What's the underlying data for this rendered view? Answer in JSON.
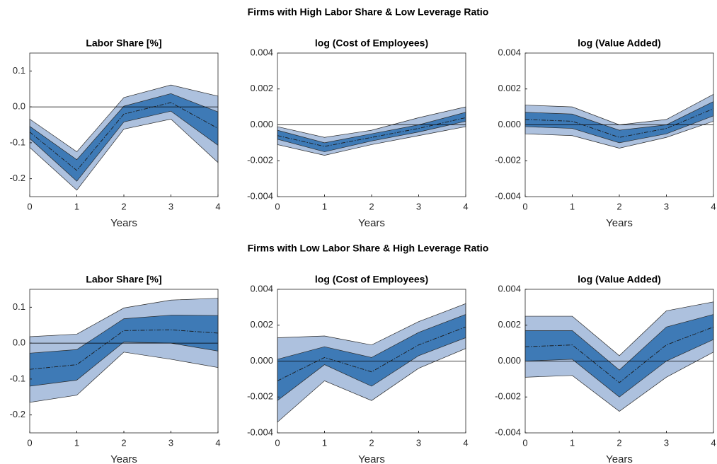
{
  "row_titles": [
    "Firms with High Labor Share & Low Leverage Ratio",
    "Firms with Low Labor Share & High Leverage Ratio"
  ],
  "chart_data": [
    {
      "type": "band",
      "title": "Labor Share [%]",
      "x_label": "Years",
      "x": [
        0,
        1,
        2,
        3,
        4
      ],
      "xlim": [
        0,
        4
      ],
      "xticks": [
        0,
        1,
        2,
        3,
        4
      ],
      "ylim": [
        -0.25,
        0.15
      ],
      "yticks": [
        -0.2,
        -0.1,
        {
          "value": 0,
          "label": "0.0"
        },
        0.1
      ],
      "reference_line": 0,
      "outer_band": {
        "color": "#adc1de",
        "upper": [
          -0.034,
          -0.125,
          0.026,
          0.061,
          0.03
        ],
        "lower": [
          -0.113,
          -0.232,
          -0.062,
          -0.034,
          -0.155
        ]
      },
      "inner_band": {
        "color": "#3e7ab6",
        "upper": [
          -0.054,
          -0.147,
          0.002,
          0.037,
          -0.014
        ],
        "lower": [
          -0.088,
          -0.207,
          -0.042,
          -0.012,
          -0.107
        ]
      },
      "line": {
        "color": "#1a1a1a",
        "values": [
          -0.07,
          -0.177,
          -0.02,
          0.012,
          -0.06
        ]
      }
    },
    {
      "type": "band",
      "title": "log (Cost of Employees)",
      "x_label": "Years",
      "x": [
        0,
        1,
        2,
        3,
        4
      ],
      "xlim": [
        0,
        4
      ],
      "xticks": [
        0,
        1,
        2,
        3,
        4
      ],
      "ylim": [
        -0.004,
        0.004
      ],
      "yticks": [
        -0.004,
        -0.002,
        {
          "value": 0,
          "label": "0.000"
        },
        0.002,
        0.004
      ],
      "reference_line": 0,
      "outer_band": {
        "color": "#adc1de",
        "upper": [
          -0.0001,
          -0.0007,
          -0.0003,
          0.0004,
          0.001
        ],
        "lower": [
          -0.0011,
          -0.0017,
          -0.0011,
          -0.0006,
          -0.0001
        ]
      },
      "inner_band": {
        "color": "#3e7ab6",
        "upper": [
          -0.0003,
          -0.001,
          -0.0005,
          0.0,
          0.0007
        ],
        "lower": [
          -0.0008,
          -0.0015,
          -0.0009,
          -0.0004,
          0.0002
        ]
      },
      "line": {
        "color": "#1a1a1a",
        "values": [
          -0.0006,
          -0.0012,
          -0.0007,
          -0.0002,
          0.0004
        ]
      }
    },
    {
      "type": "band",
      "title": "log (Value Added)",
      "x_label": "Years",
      "x": [
        0,
        1,
        2,
        3,
        4
      ],
      "xlim": [
        0,
        4
      ],
      "xticks": [
        0,
        1,
        2,
        3,
        4
      ],
      "ylim": [
        -0.004,
        0.004
      ],
      "yticks": [
        -0.004,
        -0.002,
        {
          "value": 0,
          "label": "0.000"
        },
        0.002,
        0.004
      ],
      "reference_line": 0,
      "outer_band": {
        "color": "#adc1de",
        "upper": [
          0.0011,
          0.001,
          0.0,
          0.0003,
          0.0017
        ],
        "lower": [
          -0.0005,
          -0.0006,
          -0.0013,
          -0.0007,
          0.0002
        ]
      },
      "inner_band": {
        "color": "#3e7ab6",
        "upper": [
          0.0007,
          0.0006,
          -0.0003,
          0.0,
          0.0013
        ],
        "lower": [
          -0.0001,
          -0.0002,
          -0.001,
          -0.0005,
          0.0005
        ]
      },
      "line": {
        "color": "#1a1a1a",
        "values": [
          0.0003,
          0.0002,
          -0.0007,
          -0.0002,
          0.0009
        ]
      }
    },
    {
      "type": "band",
      "title": "Labor Share [%]",
      "x_label": "Years",
      "x": [
        0,
        1,
        2,
        3,
        4
      ],
      "xlim": [
        0,
        4
      ],
      "xticks": [
        0,
        1,
        2,
        3,
        4
      ],
      "ylim": [
        -0.25,
        0.15
      ],
      "yticks": [
        -0.2,
        -0.1,
        {
          "value": 0,
          "label": "0.0"
        },
        0.1
      ],
      "reference_line": 0,
      "outer_band": {
        "color": "#adc1de",
        "upper": [
          0.018,
          0.025,
          0.098,
          0.12,
          0.125
        ],
        "lower": [
          -0.165,
          -0.145,
          -0.025,
          -0.045,
          -0.068
        ]
      },
      "inner_band": {
        "color": "#3e7ab6",
        "upper": [
          -0.028,
          -0.018,
          0.068,
          0.078,
          0.077
        ],
        "lower": [
          -0.12,
          -0.103,
          0.003,
          0.0,
          -0.022
        ]
      },
      "line": {
        "color": "#1a1a1a",
        "values": [
          -0.073,
          -0.06,
          0.035,
          0.037,
          0.028
        ]
      }
    },
    {
      "type": "band",
      "title": "log (Cost of Employees)",
      "x_label": "Years",
      "x": [
        0,
        1,
        2,
        3,
        4
      ],
      "xlim": [
        0,
        4
      ],
      "xticks": [
        0,
        1,
        2,
        3,
        4
      ],
      "ylim": [
        -0.004,
        0.004
      ],
      "yticks": [
        -0.004,
        -0.002,
        {
          "value": 0,
          "label": "0.000"
        },
        0.002,
        0.004
      ],
      "reference_line": 0,
      "outer_band": {
        "color": "#adc1de",
        "upper": [
          0.0013,
          0.0014,
          0.0009,
          0.0022,
          0.0032
        ],
        "lower": [
          -0.0034,
          -0.0011,
          -0.0022,
          -0.0004,
          0.0007
        ]
      },
      "inner_band": {
        "color": "#3e7ab6",
        "upper": [
          0.0001,
          0.0008,
          0.0002,
          0.0016,
          0.0026
        ],
        "lower": [
          -0.0022,
          -0.0002,
          -0.0014,
          0.0003,
          0.0013
        ]
      },
      "line": {
        "color": "#1a1a1a",
        "values": [
          -0.0011,
          0.0002,
          -0.0006,
          0.0009,
          0.0019
        ]
      }
    },
    {
      "type": "band",
      "title": "log (Value Added)",
      "x_label": "Years",
      "x": [
        0,
        1,
        2,
        3,
        4
      ],
      "xlim": [
        0,
        4
      ],
      "xticks": [
        0,
        1,
        2,
        3,
        4
      ],
      "ylim": [
        -0.004,
        0.004
      ],
      "yticks": [
        -0.004,
        -0.002,
        {
          "value": 0,
          "label": "0.000"
        },
        0.002,
        0.004
      ],
      "reference_line": 0,
      "outer_band": {
        "color": "#adc1de",
        "upper": [
          0.0025,
          0.0025,
          0.0003,
          0.0028,
          0.0033
        ],
        "lower": [
          -0.0009,
          -0.0008,
          -0.0028,
          -0.0009,
          0.0005
        ]
      },
      "inner_band": {
        "color": "#3e7ab6",
        "upper": [
          0.0017,
          0.0017,
          -0.0005,
          0.0019,
          0.0026
        ],
        "lower": [
          0.0,
          0.0001,
          -0.002,
          0.0,
          0.0012
        ]
      },
      "line": {
        "color": "#1a1a1a",
        "values": [
          0.0008,
          0.0009,
          -0.0012,
          0.0009,
          0.0019
        ]
      }
    }
  ]
}
